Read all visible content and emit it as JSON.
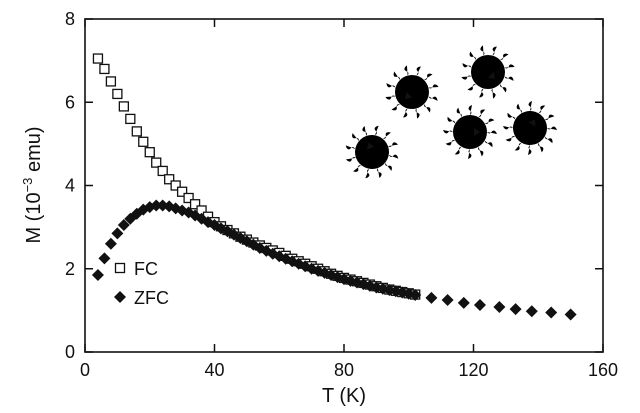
{
  "chart_data": {
    "type": "scatter",
    "xlabel": "T (K)",
    "ylabel": [
      "M (10",
      "−3",
      " emu)"
    ],
    "xlim": [
      0,
      160
    ],
    "xticks": [
      0,
      40,
      80,
      120,
      160
    ],
    "ylim": [
      0,
      8
    ],
    "yticks": [
      0,
      2,
      4,
      6,
      8
    ],
    "legend": "lower left",
    "series": [
      {
        "name": "FC",
        "marker": "square-open",
        "color": "#111111",
        "x": [
          4,
          6,
          8,
          10,
          12,
          14,
          16,
          18,
          20,
          22,
          24,
          26,
          28,
          30,
          32,
          34,
          36,
          38,
          40,
          42,
          44,
          46,
          48,
          50,
          52,
          54,
          56,
          58,
          60,
          62,
          64,
          66,
          68,
          70,
          72,
          74,
          76,
          78,
          80,
          82,
          84,
          86,
          88,
          90,
          92,
          94,
          96,
          98,
          100,
          102
        ],
        "values": [
          7.05,
          6.8,
          6.5,
          6.2,
          5.9,
          5.6,
          5.3,
          5.05,
          4.8,
          4.55,
          4.35,
          4.15,
          4.0,
          3.85,
          3.7,
          3.55,
          3.4,
          3.25,
          3.12,
          3.02,
          2.93,
          2.85,
          2.77,
          2.7,
          2.63,
          2.56,
          2.5,
          2.44,
          2.38,
          2.31,
          2.24,
          2.18,
          2.12,
          2.06,
          2.0,
          1.94,
          1.88,
          1.83,
          1.78,
          1.74,
          1.7,
          1.66,
          1.62,
          1.58,
          1.54,
          1.5,
          1.47,
          1.44,
          1.41,
          1.38
        ]
      },
      {
        "name": "ZFC",
        "marker": "diamond-filled",
        "color": "#111111",
        "x": [
          4,
          6,
          8,
          10,
          12,
          14,
          16,
          18,
          20,
          22,
          24,
          26,
          28,
          30,
          32,
          34,
          36,
          38,
          40,
          42,
          44,
          46,
          48,
          50,
          52,
          54,
          56,
          58,
          60,
          62,
          64,
          66,
          68,
          70,
          72,
          74,
          76,
          78,
          80,
          82,
          84,
          86,
          88,
          90,
          92,
          94,
          96,
          98,
          100,
          102,
          107,
          112,
          117,
          122,
          128,
          133,
          138,
          144,
          150
        ],
        "values": [
          1.85,
          2.25,
          2.6,
          2.85,
          3.05,
          3.2,
          3.32,
          3.42,
          3.48,
          3.52,
          3.52,
          3.5,
          3.45,
          3.4,
          3.35,
          3.28,
          3.2,
          3.12,
          3.05,
          2.97,
          2.9,
          2.82,
          2.74,
          2.66,
          2.58,
          2.5,
          2.43,
          2.36,
          2.3,
          2.24,
          2.18,
          2.12,
          2.06,
          2.0,
          1.95,
          1.9,
          1.85,
          1.8,
          1.75,
          1.71,
          1.67,
          1.63,
          1.59,
          1.55,
          1.52,
          1.49,
          1.46,
          1.43,
          1.4,
          1.37,
          1.3,
          1.25,
          1.18,
          1.13,
          1.08,
          1.03,
          0.98,
          0.95,
          0.9
        ]
      }
    ]
  }
}
